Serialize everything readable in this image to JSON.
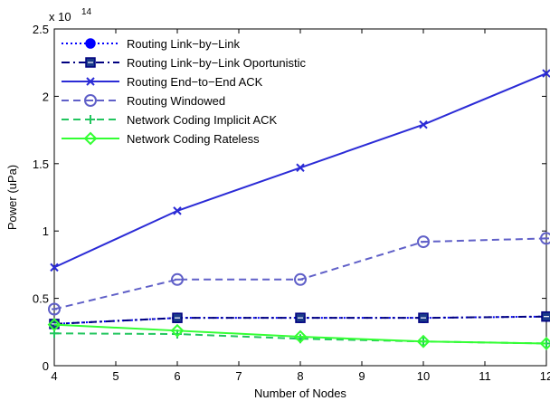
{
  "chart_data": {
    "type": "line",
    "xlabel": "Number of Nodes",
    "ylabel": "Power (uPa)",
    "exponent_label": "x 10",
    "exponent_power": "14",
    "xlim": [
      4,
      12
    ],
    "ylim": [
      0,
      2.5
    ],
    "xticks": [
      4,
      5,
      6,
      7,
      8,
      9,
      10,
      11,
      12
    ],
    "yticks": [
      0,
      0.5,
      1,
      1.5,
      2,
      2.5
    ],
    "ytick_labels": [
      "0",
      "0.5",
      "1",
      "1.5",
      "2",
      "2.5"
    ],
    "legend_position": "top-left",
    "grid": false,
    "x": [
      4,
      6,
      8,
      10,
      12
    ],
    "series": [
      {
        "name": "Routing Link−by−Link",
        "values": [
          0.31,
          0.355,
          0.355,
          0.355,
          0.365
        ],
        "color": "#0000ff",
        "dash": "dotted",
        "marker": "filled-circle"
      },
      {
        "name": "Routing Link−by−Link Oportunistic",
        "values": [
          0.31,
          0.355,
          0.355,
          0.355,
          0.365
        ],
        "color": "#000080",
        "dash": "dashdot",
        "marker": "square"
      },
      {
        "name": "Routing End−to−End ACK",
        "values": [
          0.73,
          1.15,
          1.47,
          1.79,
          2.17
        ],
        "color": "#2b2bd6",
        "dash": "solid",
        "marker": "x"
      },
      {
        "name": "Routing Windowed",
        "values": [
          0.42,
          0.64,
          0.64,
          0.92,
          0.945
        ],
        "color": "#6060c8",
        "dash": "dashed",
        "marker": "open-circle"
      },
      {
        "name": "Network Coding Implicit ACK",
        "values": [
          0.24,
          0.235,
          0.2,
          0.18,
          0.165
        ],
        "color": "#22c55e",
        "dash": "dashed",
        "marker": "plus"
      },
      {
        "name": "Network Coding Rateless",
        "values": [
          0.305,
          0.26,
          0.215,
          0.18,
          0.165
        ],
        "color": "#33ff33",
        "dash": "solid",
        "marker": "diamond"
      }
    ]
  }
}
